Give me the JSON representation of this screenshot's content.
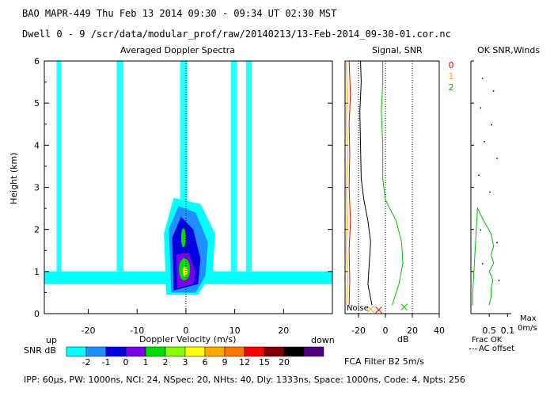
{
  "header": {
    "line1": "BAO  MAPR-449  Thu Feb 13 2014 09:30 - 09:34 UT 02:30 MST",
    "line2": "Dwell  0 -  9  /scr/data/modular_prof/raw/20140213/13-Feb-2014_09-30-01.cor.nc"
  },
  "footer": {
    "params": "IPP: 60μs,  PW: 1000ns,  NCI: 24,  NSpec: 20, NHts: 40,  Dly: 1333ns,  Space: 1000ns,  Code: 4,  Npts: 256",
    "fca": "FCA Filter B2  5m/s"
  },
  "colors": {
    "snr_scale": [
      "#00ffff",
      "#1e90ff",
      "#0000e0",
      "#7b00e8",
      "#00dd00",
      "#88ff00",
      "#ffff00",
      "#ffaa00",
      "#ff7700",
      "#ff0000",
      "#800000",
      "#000000",
      "#500080"
    ],
    "series_0": "#ff0000",
    "series_1": "#ffaa00",
    "series_2": "#00c000"
  },
  "chart_data": [
    {
      "type": "heatmap",
      "title": "Averaged Doppler Spectra",
      "xlabel": "Doppler Velocity (m/s)",
      "ylabel": "Height (km)",
      "x_ticks": [
        "-20",
        "-10",
        "0",
        "10",
        "20"
      ],
      "y_ticks": [
        "0",
        "1",
        "2",
        "3",
        "4",
        "5",
        "6"
      ],
      "xlim": [
        -29,
        30
      ],
      "ylim": [
        0,
        6
      ],
      "left_label": "up",
      "right_label": "down",
      "colorbar": {
        "title": "SNR dB",
        "labels": [
          "-2",
          "-1",
          "0",
          "1",
          "2",
          "3",
          "6",
          "9",
          "12",
          "15",
          "20"
        ]
      },
      "echo_core": [
        {
          "height_km": 0.5,
          "v_min": -1.5,
          "v_max": 2.0
        },
        {
          "height_km": 1.0,
          "v_min": -2.5,
          "v_max": 3.0
        },
        {
          "height_km": 1.5,
          "v_min": -2.5,
          "v_max": 2.5
        },
        {
          "height_km": 2.0,
          "v_min": -1.5,
          "v_max": 1.5
        },
        {
          "height_km": 2.5,
          "v_min": -1.0,
          "v_max": 1.0
        }
      ]
    },
    {
      "type": "line",
      "title": "Signal, SNR",
      "xlabel": "dB",
      "x_ticks": [
        "-20",
        "0",
        "20",
        "40"
      ],
      "xlim": [
        -30,
        40
      ],
      "ylim": [
        0,
        6
      ],
      "noise_label": "Noise",
      "series": [
        {
          "name": "0",
          "x": [
            -27,
            -26.5,
            -27,
            -26,
            -27,
            -26.5,
            -27,
            -26,
            -27
          ],
          "y": [
            0.2,
            0.8,
            1.5,
            2.2,
            3.0,
            3.8,
            4.5,
            5.2,
            6.0
          ]
        },
        {
          "name": "1",
          "x": [
            -29,
            -28,
            -29,
            -28.5,
            -29,
            -28,
            -29,
            -28.5,
            -29
          ],
          "y": [
            0.2,
            0.8,
            1.5,
            2.2,
            3.0,
            3.8,
            4.5,
            5.2,
            6.0
          ]
        },
        {
          "name": "2",
          "x": [
            5,
            10,
            13,
            12,
            8,
            0,
            -2,
            -2,
            -3,
            -2,
            -2
          ],
          "y": [
            0.2,
            0.7,
            1.2,
            1.7,
            2.2,
            2.7,
            3.2,
            4.0,
            4.8,
            5.5,
            6.0
          ]
        },
        {
          "name": "signal",
          "x": [
            -10,
            -13,
            -12,
            -11,
            -13,
            -16,
            -18,
            -18.5,
            -19,
            -18,
            -18.5
          ],
          "y": [
            0.2,
            0.7,
            1.2,
            1.7,
            2.2,
            2.7,
            3.2,
            4.0,
            4.8,
            5.5,
            6.0
          ]
        }
      ],
      "markers": [
        {
          "series": "0",
          "x": -5,
          "y": 0.03
        },
        {
          "series": "1",
          "x": -11,
          "y": 0.05
        },
        {
          "series": "2",
          "x": 14,
          "y": 0.1
        }
      ]
    },
    {
      "type": "line",
      "title": "OK SNR,Winds",
      "legend": [
        "0",
        "1",
        "2"
      ],
      "x_ticks": [
        "0.5",
        "0.1"
      ],
      "xlim": [
        0,
        1.1
      ],
      "ylim": [
        0,
        6
      ],
      "xlabel": "Frac OK",
      "note": "AC offset",
      "right_labels": [
        "Max",
        "0m/s"
      ],
      "series": [
        {
          "name": "2",
          "x": [
            0.05,
            0.05,
            0.18,
            0.35,
            0.55,
            0.62,
            0.55,
            0.62,
            0.5,
            0.6,
            0.55,
            0.55,
            0.5
          ],
          "y": [
            0.2,
            0.5,
            2.5,
            2.2,
            1.9,
            1.6,
            1.4,
            1.2,
            1.0,
            0.8,
            0.6,
            0.4,
            0.2
          ]
        }
      ],
      "points": [
        {
          "x": 0.3,
          "y": 5.6
        },
        {
          "x": 0.6,
          "y": 5.3
        },
        {
          "x": 0.25,
          "y": 4.9
        },
        {
          "x": 0.55,
          "y": 4.5
        },
        {
          "x": 0.35,
          "y": 4.1
        },
        {
          "x": 0.7,
          "y": 3.7
        },
        {
          "x": 0.2,
          "y": 3.3
        },
        {
          "x": 0.5,
          "y": 2.9
        },
        {
          "x": 0.25,
          "y": 2.0
        },
        {
          "x": 0.7,
          "y": 1.7
        },
        {
          "x": 0.3,
          "y": 1.2
        },
        {
          "x": 0.75,
          "y": 0.8
        }
      ]
    }
  ]
}
